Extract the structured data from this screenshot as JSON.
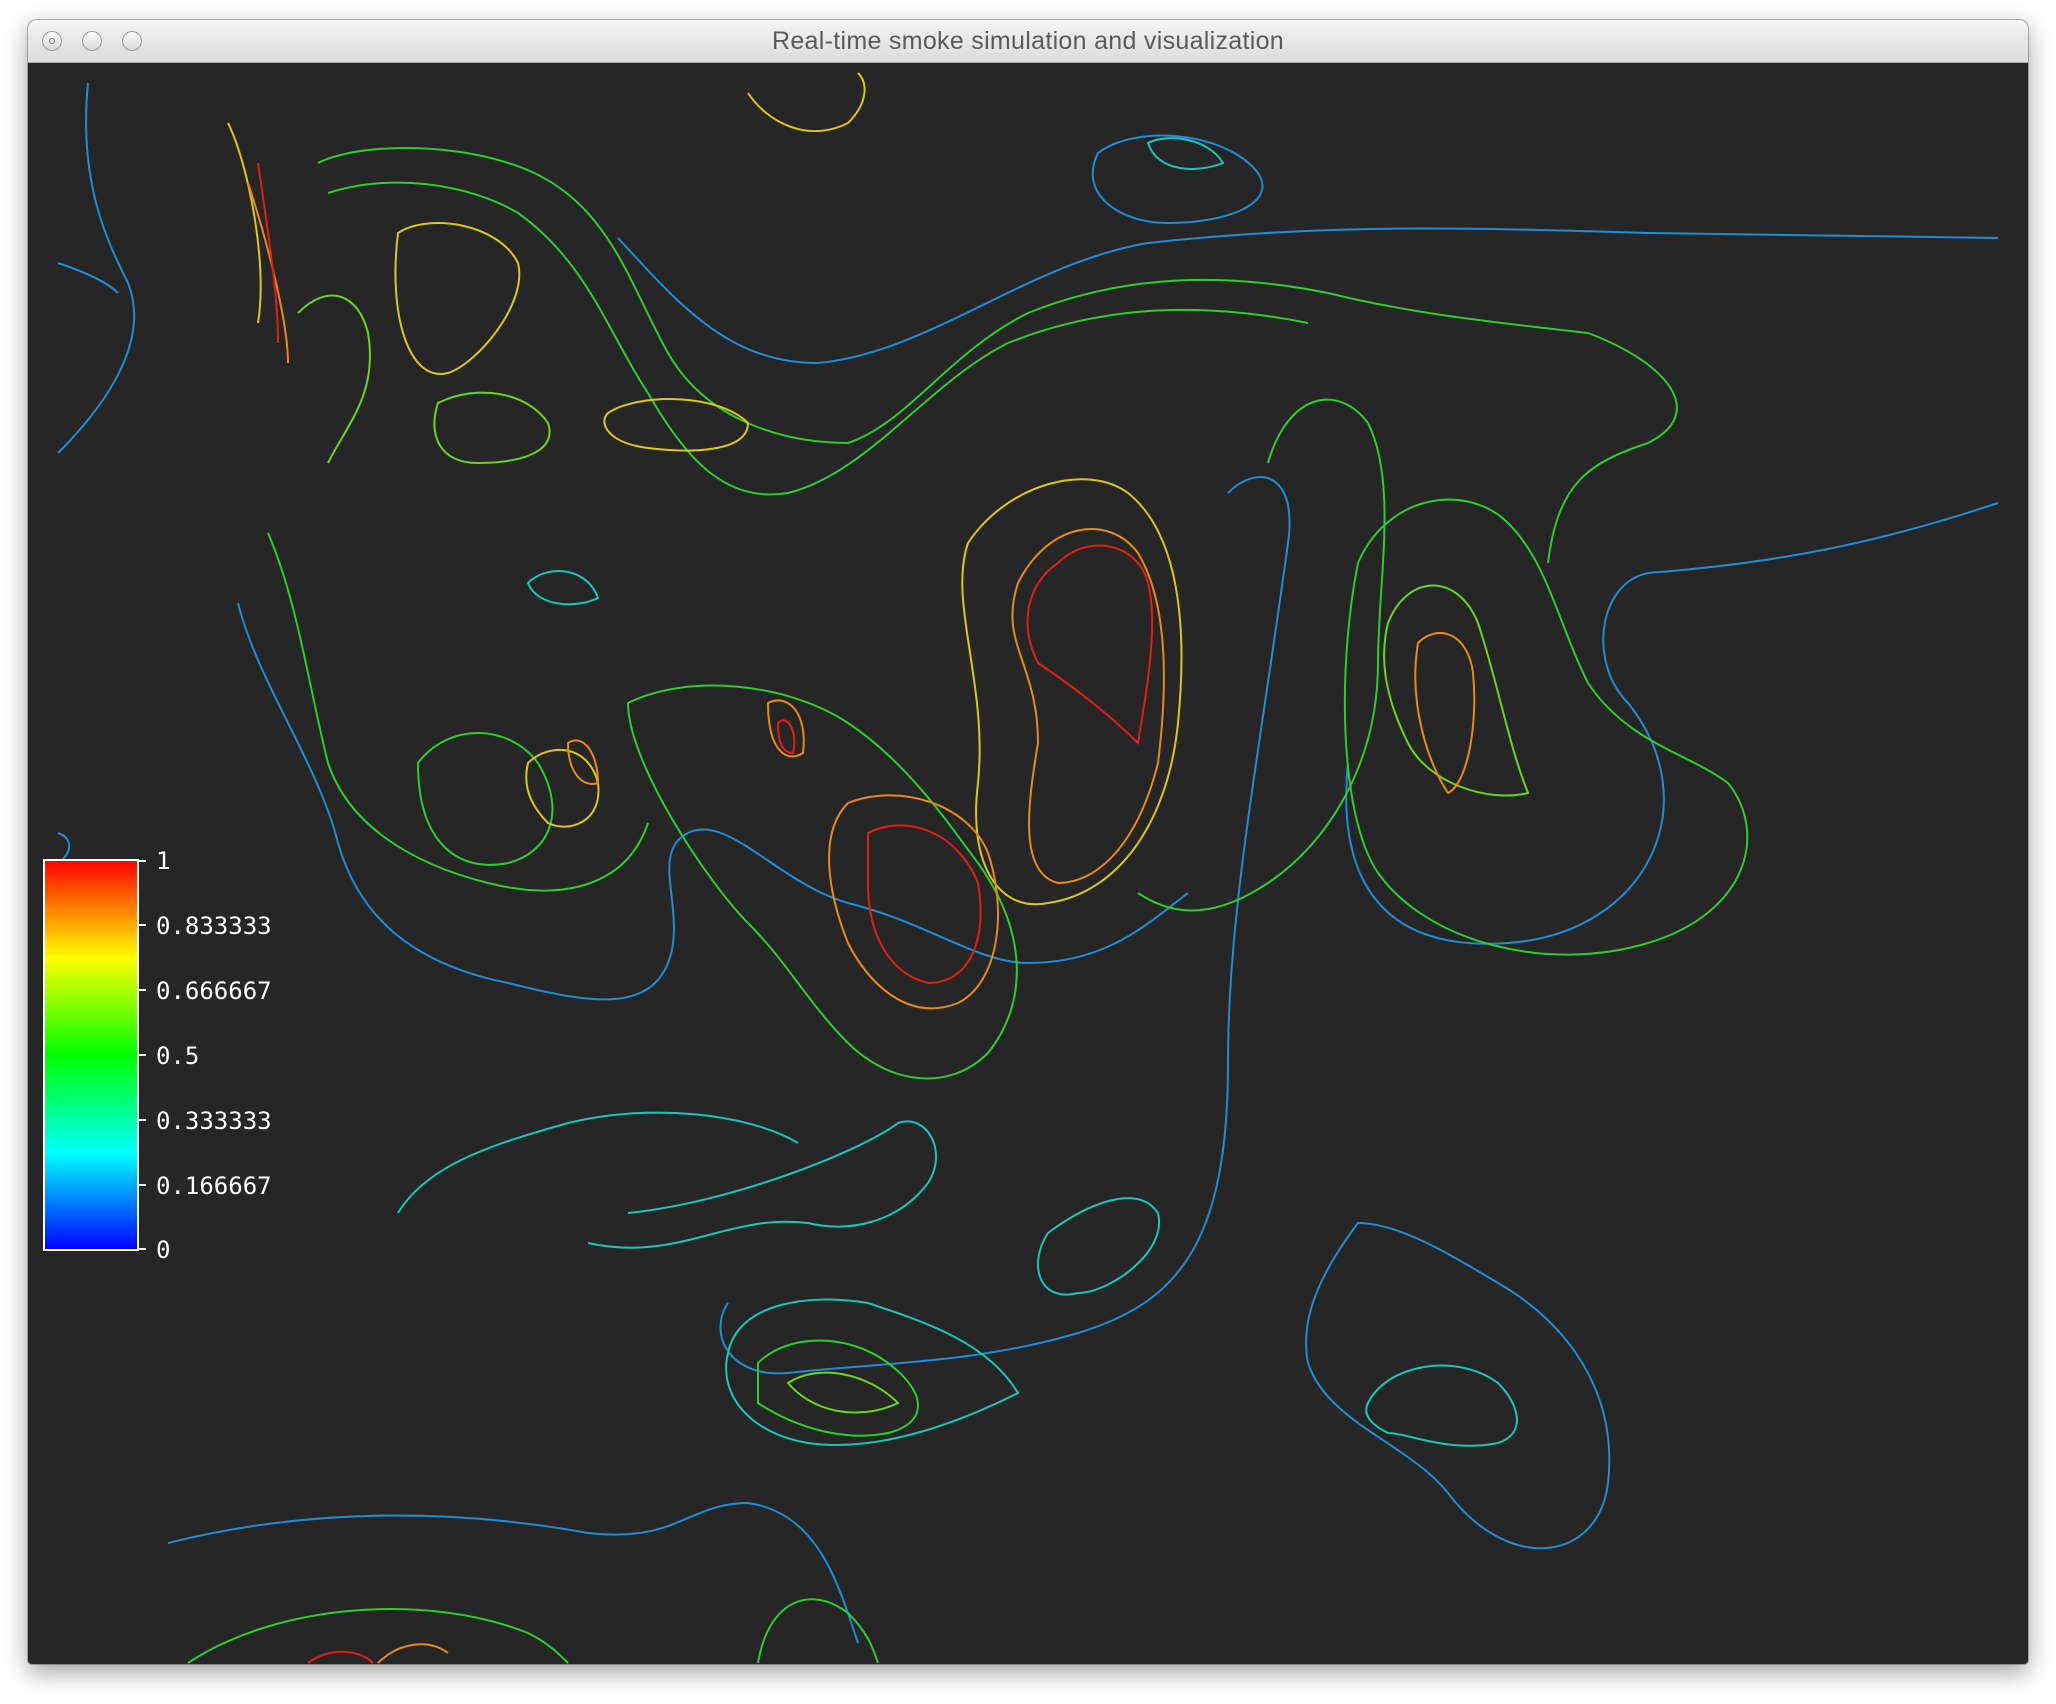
{
  "window": {
    "title": "Real-time smoke simulation and visualization"
  },
  "colorbar": {
    "labels": [
      "1",
      "0.833333",
      "0.666667",
      "0.5",
      "0.333333",
      "0.166667",
      "0"
    ],
    "colors": [
      "#ff0000",
      "#ffff00",
      "#00ff00",
      "#00ffff",
      "#0000ff"
    ]
  },
  "contour_colors": {
    "low": "#1e8cd6",
    "cyan": "#19c8b4",
    "teal": "#14d28c",
    "green": "#2ecc2e",
    "lime": "#6ad41e",
    "yellow": "#d8c81a",
    "orange": "#e88a1a",
    "red": "#e21e14"
  }
}
